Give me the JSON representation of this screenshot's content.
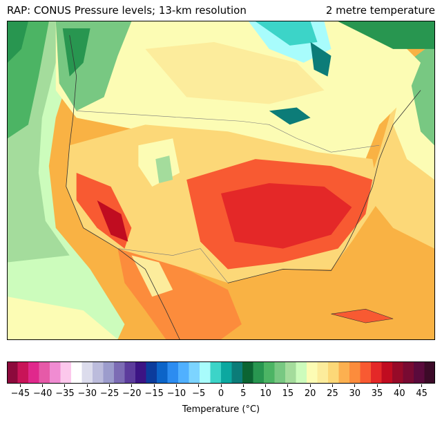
{
  "header": {
    "left_title": "RAP: CONUS Pressure levels; 13-km resolution",
    "right_title": "2 metre temperature"
  },
  "colorbar": {
    "label": "Temperature (°C)",
    "vmin": -48,
    "vmax": 48,
    "ticks": [
      -45,
      -40,
      -35,
      -30,
      -25,
      -20,
      -15,
      -10,
      -5,
      0,
      5,
      10,
      15,
      20,
      25,
      30,
      35,
      40,
      45
    ],
    "colors": [
      "#8c0a3c",
      "#c81458",
      "#e0288c",
      "#e65aa8",
      "#f08cd2",
      "#fcc8ec",
      "#ffffff",
      "#dcdcec",
      "#bcbcdc",
      "#9c9ccc",
      "#7c6cb4",
      "#5c3c9c",
      "#3c1484",
      "#0c3c9c",
      "#0c64c8",
      "#2c8cf0",
      "#50b0ff",
      "#7cd4ff",
      "#a8fcfc",
      "#3cd4c8",
      "#0ca8a0",
      "#0c7c78",
      "#0c6432",
      "#289650",
      "#4cb464",
      "#78c882",
      "#a4dc9c",
      "#ccfcbc",
      "#fcfcb4",
      "#fcec9c",
      "#fcd878",
      "#fcb050",
      "#fc8c3c",
      "#f85a32",
      "#e42828",
      "#c00c20",
      "#960a28",
      "#780a32",
      "#5a0a3c",
      "#3c0a28"
    ]
  }
}
